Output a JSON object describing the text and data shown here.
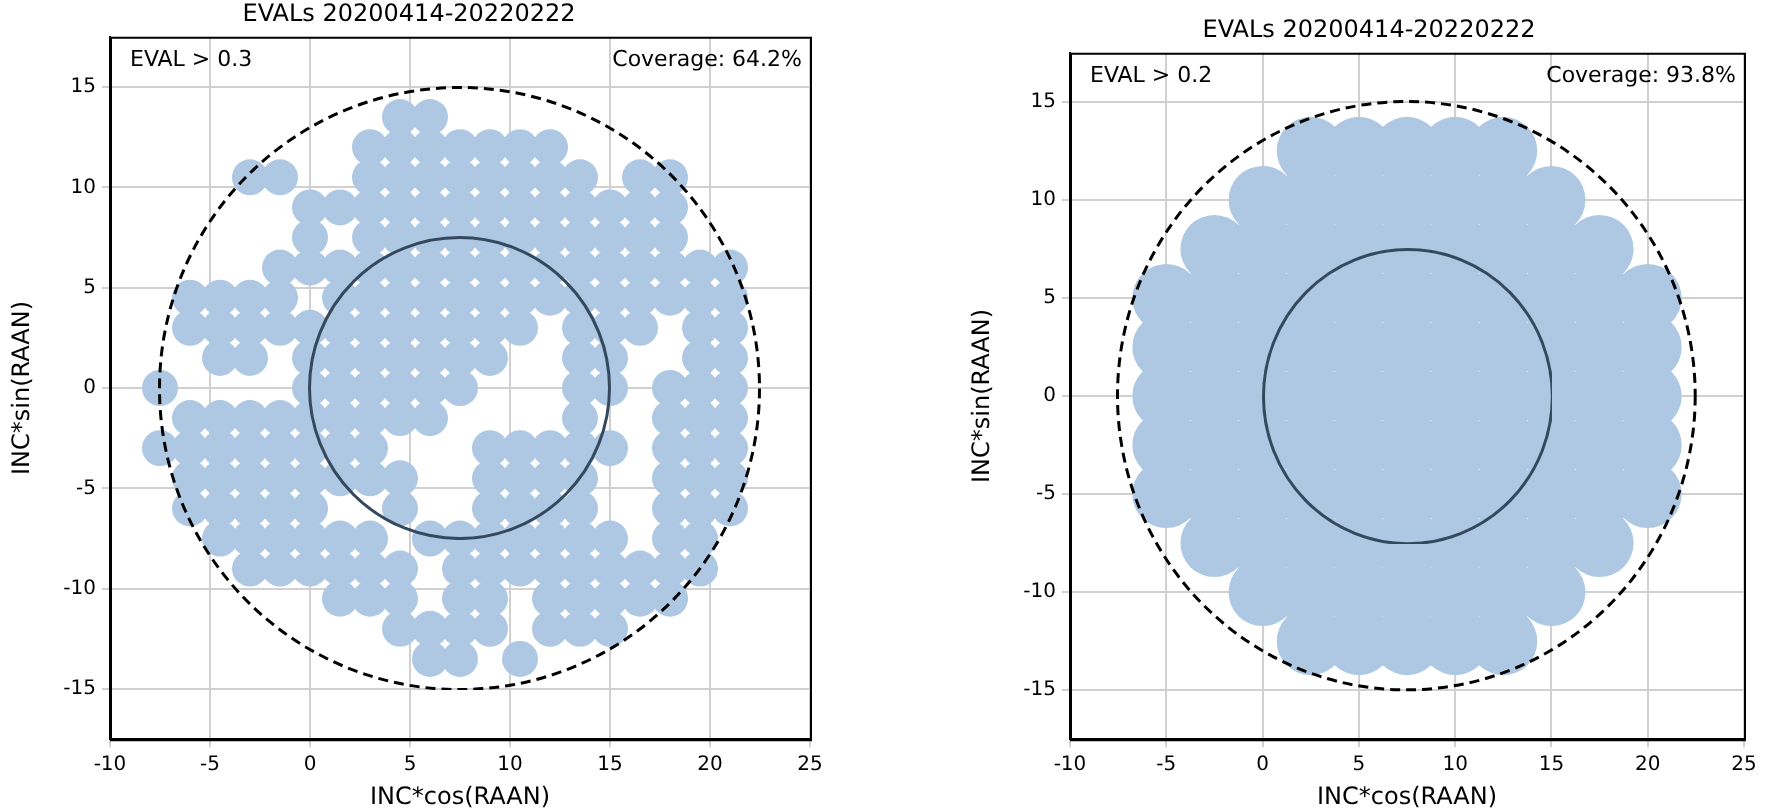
{
  "chart_data": [
    {
      "type": "scatter",
      "title": "EVALs 20200414-20220222",
      "xlabel": "INC*cos(RAAN)",
      "ylabel": "INC*sin(RAAN)",
      "xlim": [
        -10,
        25
      ],
      "xticks": [
        -10,
        -5,
        0,
        5,
        10,
        15,
        20,
        25
      ],
      "ylim": [
        -17.5,
        17.5
      ],
      "yticks": [
        -15,
        -10,
        -5,
        0,
        5,
        10,
        15
      ],
      "grid": true,
      "legend": false,
      "marker": "circle",
      "annotations": [
        "EVAL > 0.3",
        "Coverage: 64.2%"
      ],
      "series": [
        {
          "type": "scatter",
          "color": "#aec8e3",
          "x": [
            4.5,
            6,
            3,
            4.5,
            6,
            7.5,
            9,
            10.5,
            12,
            -3,
            -1.5,
            3,
            4.5,
            6,
            7.5,
            9,
            10.5,
            12,
            13.5,
            16.5,
            18,
            0,
            1.5,
            3,
            4.5,
            6,
            7.5,
            9,
            10.5,
            12,
            13.5,
            15,
            16.5,
            18,
            0,
            3,
            4.5,
            6,
            7.5,
            9,
            10.5,
            12,
            13.5,
            15,
            16.5,
            18,
            -1.5,
            0,
            1.5,
            3,
            4.5,
            6,
            7.5,
            9,
            10.5,
            12,
            13.5,
            15,
            16.5,
            18,
            19.5,
            21,
            -6,
            -4.5,
            -3,
            -1.5,
            1.5,
            3,
            4.5,
            6,
            7.5,
            9,
            10.5,
            12,
            13.5,
            15,
            16.5,
            18,
            19.5,
            21,
            -6,
            -4.5,
            -3,
            -1.5,
            0,
            1.5,
            3,
            4.5,
            6,
            7.5,
            9,
            10.5,
            13.5,
            15,
            16.5,
            19.5,
            21,
            -4.5,
            -3,
            0,
            1.5,
            3,
            4.5,
            6,
            7.5,
            9,
            13.5,
            15,
            19.5,
            21,
            -7.5,
            0,
            1.5,
            3,
            4.5,
            6,
            7.5,
            13.5,
            15,
            18,
            19.5,
            21,
            -6,
            -4.5,
            -3,
            -1.5,
            0,
            1.5,
            3,
            4.5,
            6,
            13.5,
            18,
            19.5,
            21,
            -7.5,
            -6,
            -4.5,
            -3,
            -1.5,
            0,
            1.5,
            3,
            9,
            10.5,
            12,
            13.5,
            15,
            18,
            19.5,
            21,
            -6,
            -4.5,
            -3,
            -1.5,
            0,
            1.5,
            3,
            4.5,
            9,
            10.5,
            12,
            13.5,
            18,
            19.5,
            21,
            -6,
            -4.5,
            -3,
            -1.5,
            0,
            4.5,
            9,
            10.5,
            12,
            13.5,
            18,
            19.5,
            21,
            -4.5,
            -3,
            -1.5,
            0,
            1.5,
            3,
            6,
            7.5,
            9,
            10.5,
            12,
            13.5,
            15,
            18,
            19.5,
            -3,
            -1.5,
            0,
            1.5,
            3,
            4.5,
            7.5,
            9,
            10.5,
            12,
            13.5,
            15,
            16.5,
            18,
            19.5,
            1.5,
            3,
            4.5,
            7.5,
            9,
            12,
            13.5,
            15,
            16.5,
            18,
            4.5,
            6,
            7.5,
            9,
            12,
            13.5,
            15,
            6,
            7.5,
            10.5
          ],
          "values": [
            13.5,
            13.5,
            12,
            12,
            12,
            12,
            12,
            12,
            12,
            10.5,
            10.5,
            10.5,
            10.5,
            10.5,
            10.5,
            10.5,
            10.5,
            10.5,
            10.5,
            10.5,
            10.5,
            9,
            9,
            9,
            9,
            9,
            9,
            9,
            9,
            9,
            9,
            9,
            9,
            9,
            7.5,
            7.5,
            7.5,
            7.5,
            7.5,
            7.5,
            7.5,
            7.5,
            7.5,
            7.5,
            7.5,
            7.5,
            6,
            6,
            6,
            6,
            6,
            6,
            6,
            6,
            6,
            6,
            6,
            6,
            6,
            6,
            6,
            6,
            4.5,
            4.5,
            4.5,
            4.5,
            4.5,
            4.5,
            4.5,
            4.5,
            4.5,
            4.5,
            4.5,
            4.5,
            4.5,
            4.5,
            4.5,
            4.5,
            4.5,
            4.5,
            3,
            3,
            3,
            3,
            3,
            3,
            3,
            3,
            3,
            3,
            3,
            3,
            3,
            3,
            3,
            3,
            3,
            1.5,
            1.5,
            1.5,
            1.5,
            1.5,
            1.5,
            1.5,
            1.5,
            1.5,
            1.5,
            1.5,
            1.5,
            1.5,
            0,
            0,
            0,
            0,
            0,
            0,
            0,
            0,
            0,
            0,
            0,
            0,
            -1.5,
            -1.5,
            -1.5,
            -1.5,
            -1.5,
            -1.5,
            -1.5,
            -1.5,
            -1.5,
            -1.5,
            -1.5,
            -1.5,
            -1.5,
            -3,
            -3,
            -3,
            -3,
            -3,
            -3,
            -3,
            -3,
            -3,
            -3,
            -3,
            -3,
            -3,
            -3,
            -3,
            -3,
            -4.5,
            -4.5,
            -4.5,
            -4.5,
            -4.5,
            -4.5,
            -4.5,
            -4.5,
            -4.5,
            -4.5,
            -4.5,
            -4.5,
            -4.5,
            -4.5,
            -4.5,
            -6,
            -6,
            -6,
            -6,
            -6,
            -6,
            -6,
            -6,
            -6,
            -6,
            -6,
            -6,
            -6,
            -7.5,
            -7.5,
            -7.5,
            -7.5,
            -7.5,
            -7.5,
            -7.5,
            -7.5,
            -7.5,
            -7.5,
            -7.5,
            -7.5,
            -7.5,
            -7.5,
            -7.5,
            -9,
            -9,
            -9,
            -9,
            -9,
            -9,
            -9,
            -9,
            -9,
            -9,
            -9,
            -9,
            -9,
            -9,
            -9,
            -10.5,
            -10.5,
            -10.5,
            -10.5,
            -10.5,
            -10.5,
            -10.5,
            -10.5,
            -10.5,
            -10.5,
            -12,
            -12,
            -12,
            -12,
            -12,
            -12,
            -12,
            -13.5,
            -13.5,
            -13.5
          ]
        }
      ]
    },
    {
      "type": "scatter",
      "title": "EVALs 20200414-20220222",
      "xlabel": "INC*cos(RAAN)",
      "ylabel": "INC*sin(RAAN)",
      "xlim": [
        -10,
        25
      ],
      "xticks": [
        -10,
        -5,
        0,
        5,
        10,
        15,
        20,
        25
      ],
      "ylim": [
        -17.5,
        17.5
      ],
      "yticks": [
        -15,
        -10,
        -5,
        0,
        5,
        10,
        15
      ],
      "grid": true,
      "legend": false,
      "marker": "circle",
      "annotations": [
        "EVAL > 0.2",
        "Coverage: 93.8%"
      ],
      "series": [
        {
          "type": "scatter",
          "color": "#aec8e3",
          "x": [
            2.5,
            5,
            7.5,
            10,
            12.5,
            0,
            2.5,
            5,
            7.5,
            10,
            12.5,
            15,
            -2.5,
            0,
            2.5,
            5,
            7.5,
            10,
            12.5,
            15,
            17.5,
            -5,
            -2.5,
            0,
            2.5,
            5,
            7.5,
            10,
            12.5,
            15,
            17.5,
            20,
            -5,
            -2.5,
            0,
            2.5,
            5,
            7.5,
            10,
            12.5,
            15,
            17.5,
            20,
            -5,
            -2.5,
            0,
            2.5,
            5,
            7.5,
            10,
            12.5,
            15,
            17.5,
            20,
            -5,
            -2.5,
            0,
            2.5,
            5,
            7.5,
            10,
            12.5,
            15,
            17.5,
            20,
            -5,
            -2.5,
            0,
            2.5,
            5,
            7.5,
            10,
            12.5,
            15,
            17.5,
            20,
            -2.5,
            0,
            2.5,
            5,
            7.5,
            10,
            12.5,
            15,
            17.5,
            0,
            2.5,
            5,
            7.5,
            10,
            12.5,
            15,
            2.5,
            5,
            7.5,
            10,
            12.5
          ],
          "values": [
            12.5,
            12.5,
            12.5,
            12.5,
            12.5,
            10,
            10,
            10,
            10,
            10,
            10,
            10,
            7.5,
            7.5,
            7.5,
            7.5,
            7.5,
            7.5,
            7.5,
            7.5,
            7.5,
            5,
            5,
            5,
            5,
            5,
            5,
            5,
            5,
            5,
            5,
            5,
            2.5,
            2.5,
            2.5,
            2.5,
            2.5,
            2.5,
            2.5,
            2.5,
            2.5,
            2.5,
            2.5,
            0,
            0,
            0,
            0,
            0,
            0,
            0,
            0,
            0,
            0,
            0,
            -2.5,
            -2.5,
            -2.5,
            -2.5,
            -2.5,
            -2.5,
            -2.5,
            -2.5,
            -2.5,
            -2.5,
            -2.5,
            -5,
            -5,
            -5,
            -5,
            -5,
            -5,
            -5,
            -5,
            -5,
            -5,
            -5,
            -7.5,
            -7.5,
            -7.5,
            -7.5,
            -7.5,
            -7.5,
            -7.5,
            -7.5,
            -7.5,
            -10,
            -10,
            -10,
            -10,
            -10,
            -10,
            -10,
            -12.5,
            -12.5,
            -12.5,
            -12.5,
            -12.5
          ]
        }
      ]
    }
  ]
}
